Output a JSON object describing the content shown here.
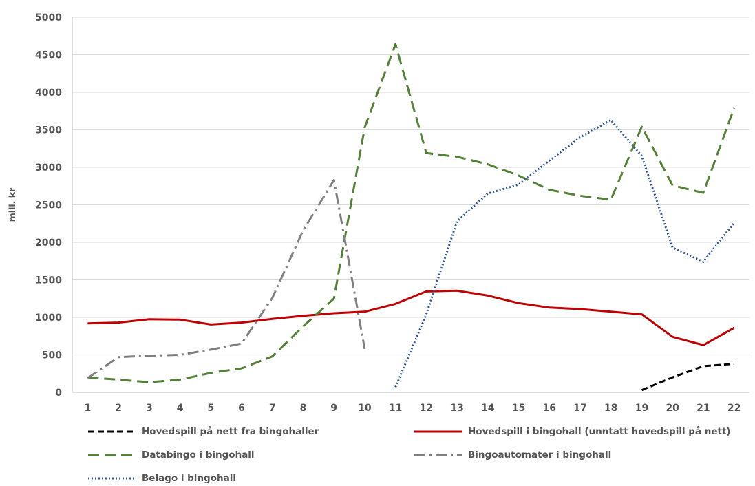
{
  "chart_data": {
    "type": "line",
    "title": "",
    "xlabel": "",
    "ylabel": "mill. kr",
    "ylim": [
      0,
      5000
    ],
    "yticks": [
      0,
      500,
      1000,
      1500,
      2000,
      2500,
      3000,
      3500,
      4000,
      4500,
      5000
    ],
    "categories": [
      "1",
      "2",
      "3",
      "4",
      "5",
      "6",
      "7",
      "8",
      "9",
      "10",
      "11",
      "12",
      "13",
      "14",
      "15",
      "16",
      "17",
      "18",
      "19",
      "20",
      "21",
      "22"
    ],
    "grid": true,
    "legend_position": "bottom",
    "series": [
      {
        "name": "Hovedspill på nett fra bingohaller",
        "color": "#000000",
        "style": "dash",
        "values": [
          null,
          null,
          null,
          null,
          null,
          null,
          null,
          null,
          null,
          null,
          null,
          null,
          null,
          null,
          null,
          null,
          null,
          null,
          30,
          200,
          350,
          380
        ]
      },
      {
        "name": "Hovedspill i bingohall (unntatt hovedspill på nett)",
        "color": "#c00000",
        "style": "solid",
        "values": [
          920,
          930,
          975,
          970,
          905,
          930,
          980,
          1020,
          1055,
          1075,
          1180,
          1345,
          1355,
          1290,
          1190,
          1130,
          1110,
          1075,
          1040,
          740,
          630,
          860
        ]
      },
      {
        "name": "Databingo i bingohall",
        "color": "#538135",
        "style": "longdash",
        "values": [
          200,
          170,
          135,
          170,
          260,
          320,
          480,
          880,
          1250,
          3530,
          4640,
          3190,
          3140,
          3040,
          2890,
          2700,
          2620,
          2570,
          3540,
          2760,
          2660,
          3790
        ]
      },
      {
        "name": "Bingoautomater i bingohall",
        "color": "#808080",
        "style": "dashdot",
        "values": [
          190,
          470,
          490,
          500,
          570,
          650,
          1260,
          2160,
          2830,
          580,
          null,
          null,
          null,
          null,
          null,
          null,
          null,
          null,
          null,
          null,
          null,
          null
        ]
      },
      {
        "name": "Belago i bingohall",
        "color": "#2e5597",
        "style": "dot",
        "values": [
          null,
          null,
          null,
          null,
          null,
          null,
          null,
          null,
          null,
          null,
          70,
          1040,
          2280,
          2650,
          2770,
          3090,
          3400,
          3630,
          3150,
          1930,
          1740,
          2260
        ]
      }
    ]
  }
}
